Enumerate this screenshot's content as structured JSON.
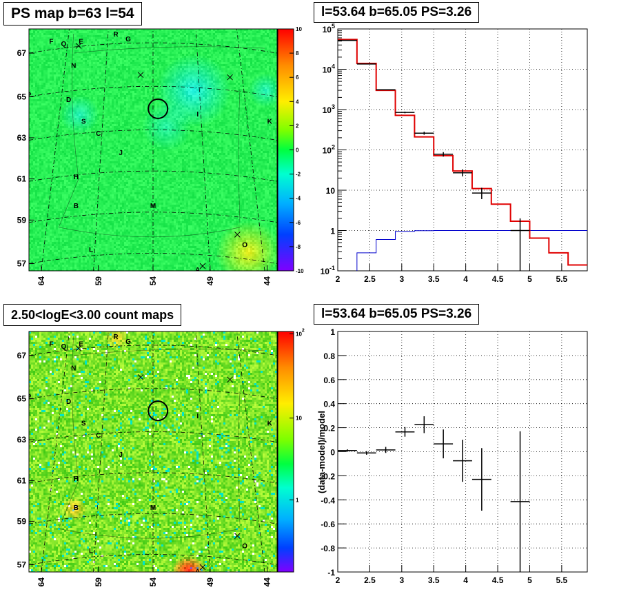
{
  "panels": {
    "ps_map": {
      "title": "PS map b=63 l=54"
    },
    "spectrum": {
      "title": "l=53.64 b=65.05 PS=3.26"
    },
    "count_map": {
      "title": "2.50<logE<3.00 count maps"
    },
    "residual": {
      "title": "l=53.64 b=65.05 PS=3.26",
      "ylabel": "(data-model)/model"
    }
  },
  "chart_data": [
    {
      "type": "heatmap",
      "title": "PS map b=63 l=54",
      "x_ticks": [
        "64",
        "59",
        "54",
        "49",
        "44"
      ],
      "y_ticks": [
        "67",
        "65",
        "63",
        "61",
        "59",
        "57"
      ],
      "colorbar": {
        "min": -10,
        "max": 10,
        "ticks": [
          "10",
          "8",
          "6",
          "4",
          "2",
          "0",
          "-2",
          "-4",
          "-6",
          "-8",
          "-10"
        ]
      },
      "labels": [
        "F",
        "Q",
        "E",
        "R",
        "G",
        "N",
        "P",
        "D",
        "I",
        "S",
        "C",
        "K",
        "J",
        "H",
        "B",
        "M",
        "L",
        "O",
        "A"
      ]
    },
    {
      "type": "line",
      "title": "l=53.64 b=65.05 PS=3.26",
      "xlim": [
        2,
        5.9
      ],
      "ylim": [
        0.1,
        100000
      ],
      "yscale": "log",
      "x_ticks": [
        "2",
        "2.5",
        "3",
        "3.5",
        "4",
        "4.5",
        "5",
        "5.5"
      ],
      "y_ticks": [
        "10^-1",
        "1",
        "10",
        "10^2",
        "10^3",
        "10^4",
        "10^5"
      ],
      "grid": true,
      "series": [
        {
          "color": "#e00000",
          "edges": [
            2.0,
            2.3,
            2.6,
            2.9,
            3.2,
            3.5,
            3.8,
            4.1,
            4.4,
            4.7,
            5.0,
            5.3,
            5.6,
            5.9
          ],
          "values": [
            55000,
            14000,
            3000,
            720,
            210,
            72,
            30,
            11,
            4.5,
            1.7,
            0.65,
            0.28,
            0.14
          ]
        },
        {
          "color": "#000000",
          "points": [
            {
              "x": 2.15,
              "y": 52000,
              "ylo": 51500,
              "yhi": 52500
            },
            {
              "x": 2.45,
              "y": 13500,
              "ylo": 13300,
              "yhi": 13700
            },
            {
              "x": 2.75,
              "y": 3100,
              "ylo": 3020,
              "yhi": 3180
            },
            {
              "x": 3.05,
              "y": 850,
              "ylo": 810,
              "yhi": 890
            },
            {
              "x": 3.35,
              "y": 260,
              "ylo": 238,
              "yhi": 283
            },
            {
              "x": 3.65,
              "y": 78,
              "ylo": 68,
              "yhi": 88
            },
            {
              "x": 3.95,
              "y": 27,
              "ylo": 22,
              "yhi": 33
            },
            {
              "x": 4.25,
              "y": 8.5,
              "ylo": 6,
              "yhi": 11.5
            },
            {
              "x": 4.85,
              "y": 1,
              "ylo": 0.1,
              "yhi": 2
            }
          ]
        },
        {
          "color": "#0000cc",
          "edges": [
            2.0,
            2.3,
            2.6,
            2.9,
            3.2,
            3.5,
            3.8,
            4.1,
            4.4,
            4.7,
            5.0,
            5.3,
            5.6,
            5.9
          ],
          "values": [
            0.05,
            0.28,
            0.6,
            0.95,
            0.99,
            1,
            1,
            1,
            1,
            1,
            1,
            1,
            1
          ]
        }
      ]
    },
    {
      "type": "heatmap",
      "title": "2.50<logE<3.00 count maps",
      "x_ticks": [
        "64",
        "59",
        "54",
        "49",
        "44"
      ],
      "y_ticks": [
        "67",
        "65",
        "63",
        "61",
        "59",
        "57"
      ],
      "colorbar": {
        "scale": "log",
        "ticks": [
          "10^2",
          "10",
          "1"
        ]
      },
      "labels": [
        "F",
        "Q",
        "E",
        "R",
        "G",
        "N",
        "P",
        "D",
        "I",
        "S",
        "C",
        "K",
        "J",
        "H",
        "B",
        "M",
        "L",
        "O",
        "A"
      ]
    },
    {
      "type": "scatter",
      "title": "l=53.64 b=65.05 PS=3.26",
      "ylabel": "(data-model)/model",
      "xlim": [
        2,
        5.9
      ],
      "ylim": [
        -1,
        1
      ],
      "grid": true,
      "x_ticks": [
        "2",
        "2.5",
        "3",
        "3.5",
        "4",
        "4.5",
        "5",
        "5.5"
      ],
      "y_ticks": [
        "1",
        "0.8",
        "0.6",
        "0.4",
        "0.2",
        "0",
        "-0.2",
        "-0.4",
        "-0.6",
        "-0.8",
        "-1"
      ],
      "points": [
        {
          "x": 2.15,
          "y": 0.01,
          "xerr": 0.15,
          "yerr": 0.01
        },
        {
          "x": 2.45,
          "y": -0.01,
          "xerr": 0.15,
          "yerr": 0.015
        },
        {
          "x": 2.75,
          "y": 0.015,
          "xerr": 0.15,
          "yerr": 0.025
        },
        {
          "x": 3.05,
          "y": 0.165,
          "xerr": 0.15,
          "yerr": 0.04
        },
        {
          "x": 3.35,
          "y": 0.225,
          "xerr": 0.15,
          "yerr": 0.07
        },
        {
          "x": 3.65,
          "y": 0.065,
          "xerr": 0.15,
          "yerr": 0.12
        },
        {
          "x": 3.95,
          "y": -0.075,
          "xerr": 0.15,
          "yerr": 0.175
        },
        {
          "x": 4.25,
          "y": -0.23,
          "xerr": 0.15,
          "yerr": 0.26
        },
        {
          "x": 4.85,
          "y": -0.415,
          "xerr": 0.15,
          "yerr": 0.585
        }
      ]
    }
  ]
}
